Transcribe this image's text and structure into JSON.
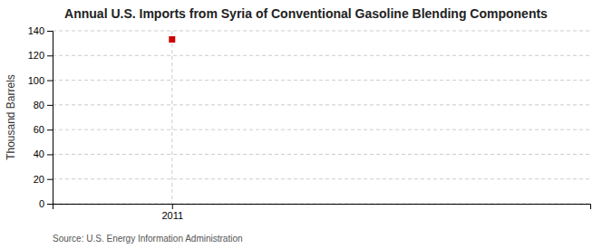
{
  "chart_data": {
    "type": "scatter",
    "title": "Annual U.S. Imports from Syria of Conventional Gasoline Blending Components",
    "ylabel": "Thousand Barrels",
    "source": "Source: U.S. Energy Information Administration",
    "x": [
      2011
    ],
    "values": [
      133
    ],
    "color": "#cc0000",
    "marker": "square",
    "xlim": [
      2010.6,
      2012.4
    ],
    "xticks": [
      2011
    ],
    "ylim": [
      0,
      140
    ],
    "yticks": [
      0,
      20,
      40,
      60,
      80,
      100,
      120,
      140
    ],
    "grid": true
  }
}
